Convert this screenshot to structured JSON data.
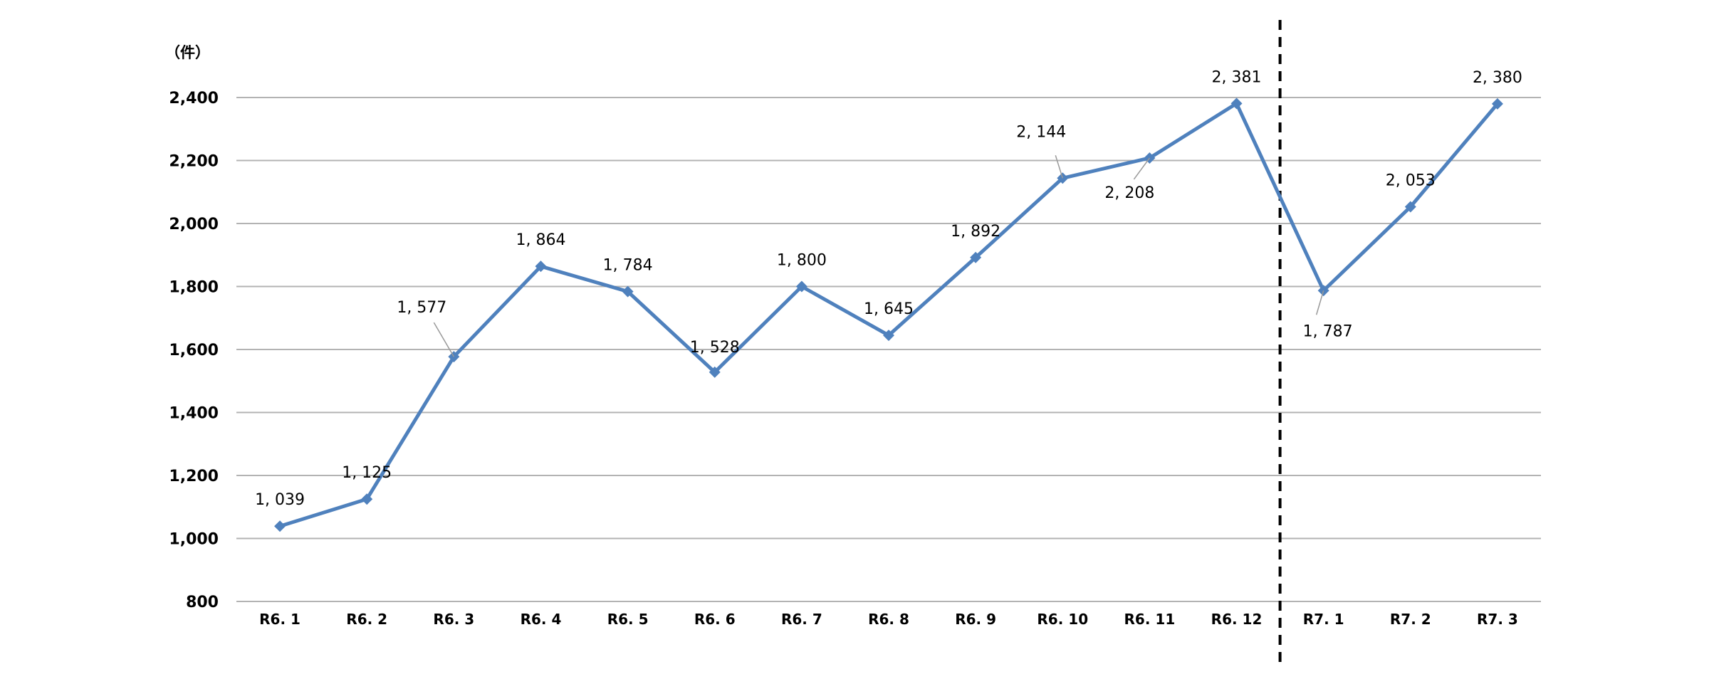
{
  "chart_data": {
    "type": "line",
    "unit_label": "（件）",
    "categories": [
      "R6. 1",
      "R6. 2",
      "R6. 3",
      "R6. 4",
      "R6. 5",
      "R6. 6",
      "R6. 7",
      "R6. 8",
      "R6. 9",
      "R6. 10",
      "R6. 11",
      "R6. 12",
      "R7. 1",
      "R7. 2",
      "R7. 3"
    ],
    "series": [
      {
        "values": [
          1039,
          1125,
          1577,
          1864,
          1784,
          1528,
          1800,
          1645,
          1892,
          2144,
          2208,
          2381,
          1787,
          2053,
          2380
        ],
        "labels": [
          "1, 039",
          "1, 125",
          "1, 577",
          "1, 864",
          "1, 784",
          "1, 528",
          "1, 800",
          "1, 645",
          "1, 892",
          "2, 144",
          "2, 208",
          "2, 381",
          "1, 787",
          "2, 053",
          "2, 380"
        ],
        "color": "#4f81bd"
      }
    ],
    "ylim": [
      800,
      2400
    ],
    "yticks": [
      800,
      1000,
      1200,
      1400,
      1600,
      1800,
      2000,
      2200,
      2400
    ],
    "ytick_labels": [
      "800",
      "1,000",
      "1,200",
      "1,400",
      "1,600",
      "1,800",
      "2,000",
      "2,200",
      "2,400"
    ],
    "grid": true,
    "gridline_color": "#b3b3b3",
    "divider_after_category": "R6. 12",
    "divider_style": "dashed",
    "legend": "none"
  }
}
